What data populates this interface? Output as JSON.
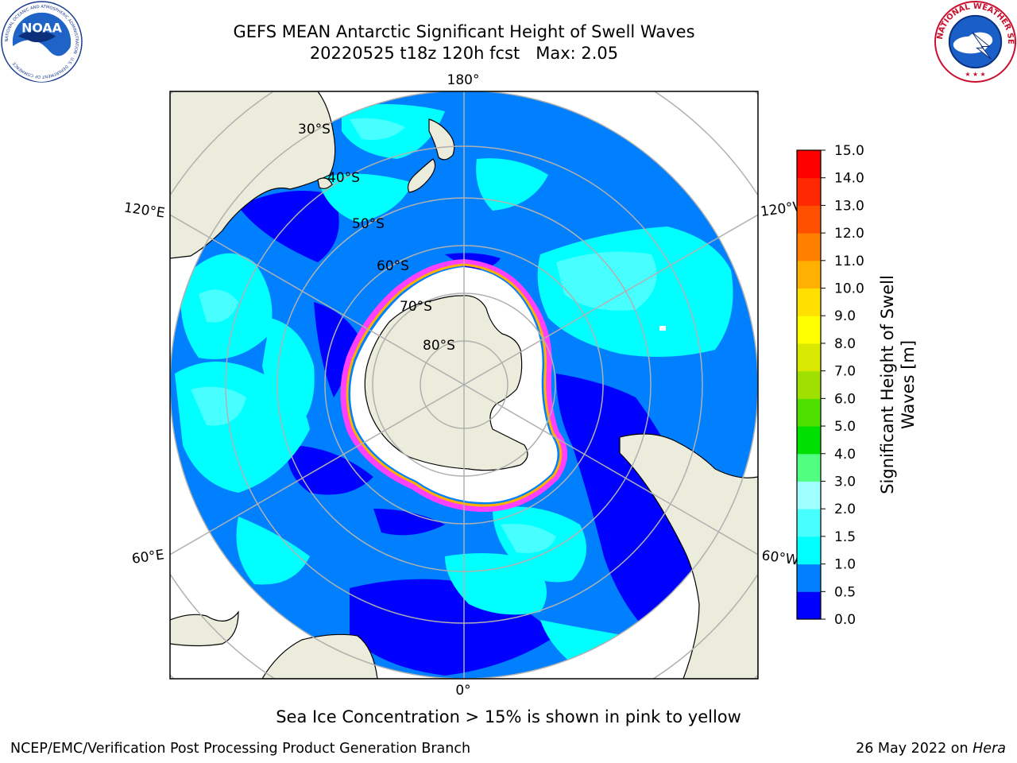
{
  "title": {
    "line1": "GEFS MEAN Antarctic Significant Height of Swell Waves",
    "line2": "20220525 t18z 120h fcst   Max: 2.05"
  },
  "logos": {
    "left": {
      "name": "noaa-logo",
      "text": "NOAA",
      "ring_text": "NATIONAL OCEANIC AND ATMOSPHERIC ADMINISTRATION · U.S. DEPARTMENT OF COMMERCE"
    },
    "right": {
      "name": "nws-logo",
      "ring_text": "NATIONAL WEATHER SERVICE"
    }
  },
  "map": {
    "projection": "south polar stereographic",
    "longitude_labels": {
      "top": "180°",
      "bottom": "0°",
      "upper_left": "120°E",
      "lower_left": "60°E",
      "upper_right": "120°W",
      "lower_right": "60°W"
    },
    "latitude_labels": [
      "30°S",
      "40°S",
      "50°S",
      "60°S",
      "70°S",
      "80°S"
    ],
    "colors": {
      "land": "#ececdc",
      "ice": "#ffffff",
      "grid": "#b0b0b0",
      "frame": "#000000"
    }
  },
  "colorbar": {
    "label_line1": "Significant Height of Swell",
    "label_line2": "Waves [m]",
    "ticks": [
      "0.0",
      "0.5",
      "1.0",
      "1.5",
      "2.0",
      "3.0",
      "4.0",
      "5.0",
      "6.0",
      "7.0",
      "8.0",
      "9.0",
      "10.0",
      "11.0",
      "12.0",
      "13.0",
      "14.0",
      "15.0"
    ],
    "colors": [
      "#0000ff",
      "#0080ff",
      "#00ffff",
      "#48ffff",
      "#a0ffff",
      "#50ff80",
      "#00e000",
      "#50e000",
      "#a0e000",
      "#d8e800",
      "#ffff00",
      "#ffe000",
      "#ffb000",
      "#ff8000",
      "#ff5000",
      "#ff2800",
      "#ff0000"
    ]
  },
  "subtitle": "Sea Ice Concentration > 15% is shown in pink to yellow",
  "footer": {
    "left": "NCEP/EMC/Verification Post Processing Product Generation Branch",
    "right_date": "26 May 2022 on ",
    "right_host": "Hera"
  }
}
